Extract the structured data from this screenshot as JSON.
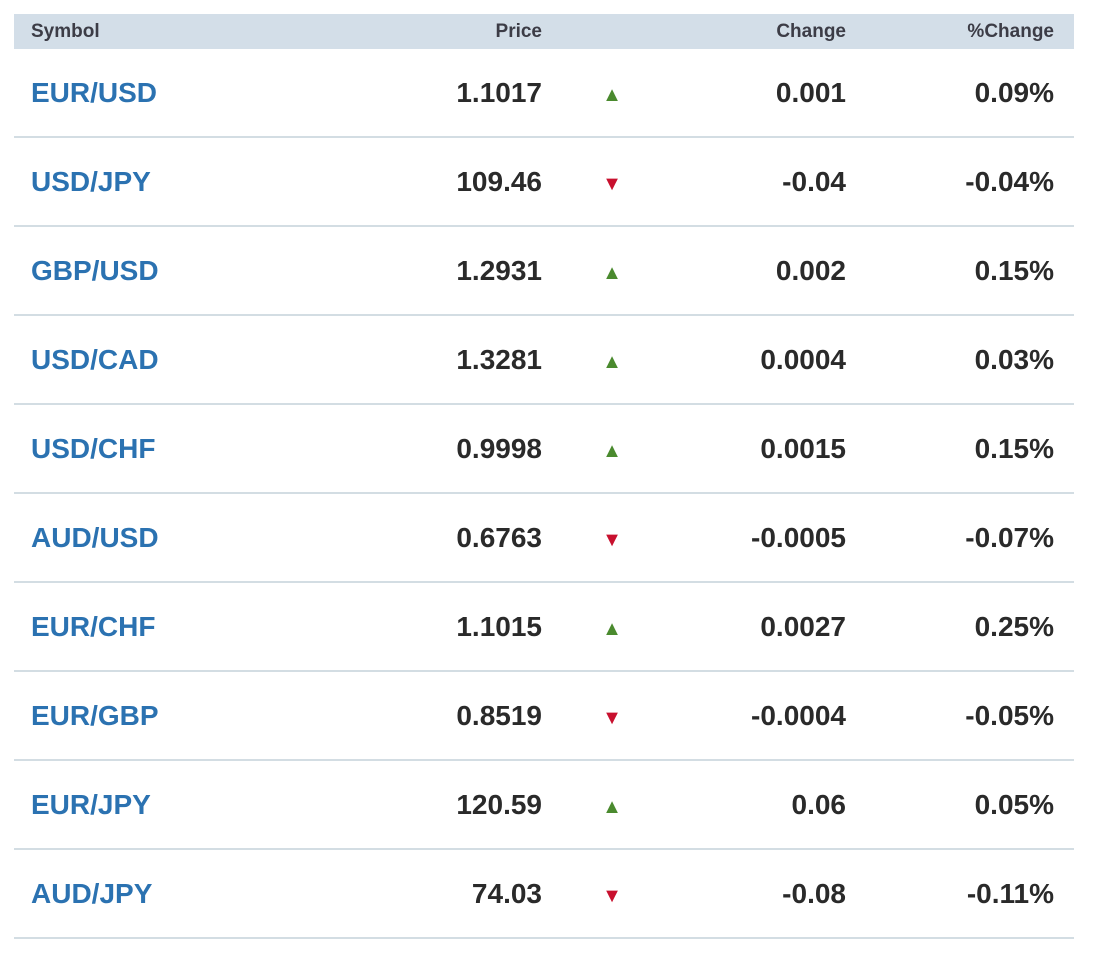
{
  "header": {
    "symbol": "Symbol",
    "price": "Price",
    "change": "Change",
    "pct_change": "%Change"
  },
  "colors": {
    "link": "#2b72b1",
    "up": "#4a8a2e",
    "down": "#c8102e",
    "header_bg": "#d3dee8"
  },
  "rows": [
    {
      "symbol": "EUR/USD",
      "price": "1.1017",
      "direction": "up",
      "change": "0.001",
      "pct_change": "0.09%"
    },
    {
      "symbol": "USD/JPY",
      "price": "109.46",
      "direction": "down",
      "change": "-0.04",
      "pct_change": "-0.04%"
    },
    {
      "symbol": "GBP/USD",
      "price": "1.2931",
      "direction": "up",
      "change": "0.002",
      "pct_change": "0.15%"
    },
    {
      "symbol": "USD/CAD",
      "price": "1.3281",
      "direction": "up",
      "change": "0.0004",
      "pct_change": "0.03%"
    },
    {
      "symbol": "USD/CHF",
      "price": "0.9998",
      "direction": "up",
      "change": "0.0015",
      "pct_change": "0.15%"
    },
    {
      "symbol": "AUD/USD",
      "price": "0.6763",
      "direction": "down",
      "change": "-0.0005",
      "pct_change": "-0.07%"
    },
    {
      "symbol": "EUR/CHF",
      "price": "1.1015",
      "direction": "up",
      "change": "0.0027",
      "pct_change": "0.25%"
    },
    {
      "symbol": "EUR/GBP",
      "price": "0.8519",
      "direction": "down",
      "change": "-0.0004",
      "pct_change": "-0.05%"
    },
    {
      "symbol": "EUR/JPY",
      "price": "120.59",
      "direction": "up",
      "change": "0.06",
      "pct_change": "0.05%"
    },
    {
      "symbol": "AUD/JPY",
      "price": "74.03",
      "direction": "down",
      "change": "-0.08",
      "pct_change": "-0.11%"
    }
  ]
}
